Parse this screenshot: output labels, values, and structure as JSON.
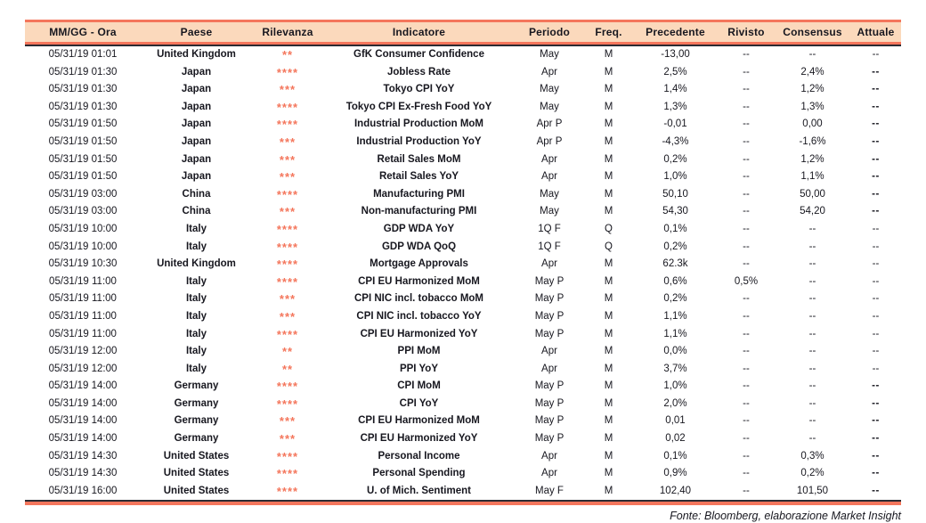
{
  "colors": {
    "accent_salmon": "#f4765c",
    "header_background": "#fbd9bc",
    "dark_rule": "#2b2b33",
    "text": "#17171f",
    "stars": "#f4765c"
  },
  "footer": {
    "source": "Fonte: Bloomberg, elaborazione Market Insight"
  },
  "table": {
    "columns": [
      "MM/GG - Ora",
      "Paese",
      "Rilevanza",
      "Indicatore",
      "Periodo",
      "Freq.",
      "Precedente",
      "Rivisto",
      "Consensus",
      "Attuale"
    ],
    "rows": [
      {
        "time": "05/31/19 01:01",
        "country": "United Kingdom",
        "stars": "**",
        "indicator": "GfK Consumer Confidence",
        "period": "May",
        "freq": "M",
        "precedente": "-13,00",
        "rivisto": "--",
        "consensus": "--",
        "attuale": "--",
        "attuale_bold": false
      },
      {
        "time": "05/31/19 01:30",
        "country": "Japan",
        "stars": "****",
        "indicator": "Jobless Rate",
        "period": "Apr",
        "freq": "M",
        "precedente": "2,5%",
        "rivisto": "--",
        "consensus": "2,4%",
        "attuale": "--",
        "attuale_bold": true
      },
      {
        "time": "05/31/19 01:30",
        "country": "Japan",
        "stars": "***",
        "indicator": "Tokyo CPI YoY",
        "period": "May",
        "freq": "M",
        "precedente": "1,4%",
        "rivisto": "--",
        "consensus": "1,2%",
        "attuale": "--",
        "attuale_bold": true
      },
      {
        "time": "05/31/19 01:30",
        "country": "Japan",
        "stars": "****",
        "indicator": "Tokyo CPI Ex-Fresh Food YoY",
        "period": "May",
        "freq": "M",
        "precedente": "1,3%",
        "rivisto": "--",
        "consensus": "1,3%",
        "attuale": "--",
        "attuale_bold": true
      },
      {
        "time": "05/31/19 01:50",
        "country": "Japan",
        "stars": "****",
        "indicator": "Industrial Production MoM",
        "period": "Apr P",
        "freq": "M",
        "precedente": "-0,01",
        "rivisto": "--",
        "consensus": "0,00",
        "attuale": "--",
        "attuale_bold": true
      },
      {
        "time": "05/31/19 01:50",
        "country": "Japan",
        "stars": "***",
        "indicator": "Industrial Production YoY",
        "period": "Apr P",
        "freq": "M",
        "precedente": "-4,3%",
        "rivisto": "--",
        "consensus": "-1,6%",
        "attuale": "--",
        "attuale_bold": true
      },
      {
        "time": "05/31/19 01:50",
        "country": "Japan",
        "stars": "***",
        "indicator": "Retail Sales MoM",
        "period": "Apr",
        "freq": "M",
        "precedente": "0,2%",
        "rivisto": "--",
        "consensus": "1,2%",
        "attuale": "--",
        "attuale_bold": true
      },
      {
        "time": "05/31/19 01:50",
        "country": "Japan",
        "stars": "***",
        "indicator": "Retail Sales YoY",
        "period": "Apr",
        "freq": "M",
        "precedente": "1,0%",
        "rivisto": "--",
        "consensus": "1,1%",
        "attuale": "--",
        "attuale_bold": true
      },
      {
        "time": "05/31/19 03:00",
        "country": "China",
        "stars": "****",
        "indicator": "Manufacturing PMI",
        "period": "May",
        "freq": "M",
        "precedente": "50,10",
        "rivisto": "--",
        "consensus": "50,00",
        "attuale": "--",
        "attuale_bold": true
      },
      {
        "time": "05/31/19 03:00",
        "country": "China",
        "stars": "***",
        "indicator": "Non-manufacturing PMI",
        "period": "May",
        "freq": "M",
        "precedente": "54,30",
        "rivisto": "--",
        "consensus": "54,20",
        "attuale": "--",
        "attuale_bold": true
      },
      {
        "time": "05/31/19 10:00",
        "country": "Italy",
        "stars": "****",
        "indicator": "GDP WDA YoY",
        "period": "1Q F",
        "freq": "Q",
        "precedente": "0,1%",
        "rivisto": "--",
        "consensus": "--",
        "attuale": "--",
        "attuale_bold": false
      },
      {
        "time": "05/31/19 10:00",
        "country": "Italy",
        "stars": "****",
        "indicator": "GDP WDA QoQ",
        "period": "1Q F",
        "freq": "Q",
        "precedente": "0,2%",
        "rivisto": "--",
        "consensus": "--",
        "attuale": "--",
        "attuale_bold": false
      },
      {
        "time": "05/31/19 10:30",
        "country": "United Kingdom",
        "stars": "****",
        "indicator": "Mortgage Approvals",
        "period": "Apr",
        "freq": "M",
        "precedente": "62.3k",
        "rivisto": "--",
        "consensus": "--",
        "attuale": "--",
        "attuale_bold": false
      },
      {
        "time": "05/31/19 11:00",
        "country": "Italy",
        "stars": "****",
        "indicator": "CPI EU Harmonized MoM",
        "period": "May P",
        "freq": "M",
        "precedente": "0,6%",
        "rivisto": "0,5%",
        "consensus": "--",
        "attuale": "--",
        "attuale_bold": false
      },
      {
        "time": "05/31/19 11:00",
        "country": "Italy",
        "stars": "***",
        "indicator": "CPI NIC incl. tobacco MoM",
        "period": "May P",
        "freq": "M",
        "precedente": "0,2%",
        "rivisto": "--",
        "consensus": "--",
        "attuale": "--",
        "attuale_bold": false
      },
      {
        "time": "05/31/19 11:00",
        "country": "Italy",
        "stars": "***",
        "indicator": "CPI NIC incl. tobacco YoY",
        "period": "May P",
        "freq": "M",
        "precedente": "1,1%",
        "rivisto": "--",
        "consensus": "--",
        "attuale": "--",
        "attuale_bold": false
      },
      {
        "time": "05/31/19 11:00",
        "country": "Italy",
        "stars": "****",
        "indicator": "CPI EU Harmonized YoY",
        "period": "May P",
        "freq": "M",
        "precedente": "1,1%",
        "rivisto": "--",
        "consensus": "--",
        "attuale": "--",
        "attuale_bold": false
      },
      {
        "time": "05/31/19 12:00",
        "country": "Italy",
        "stars": "**",
        "indicator": "PPI MoM",
        "period": "Apr",
        "freq": "M",
        "precedente": "0,0%",
        "rivisto": "--",
        "consensus": "--",
        "attuale": "--",
        "attuale_bold": false
      },
      {
        "time": "05/31/19 12:00",
        "country": "Italy",
        "stars": "**",
        "indicator": "PPI YoY",
        "period": "Apr",
        "freq": "M",
        "precedente": "3,7%",
        "rivisto": "--",
        "consensus": "--",
        "attuale": "--",
        "attuale_bold": false
      },
      {
        "time": "05/31/19 14:00",
        "country": "Germany",
        "stars": "****",
        "indicator": "CPI MoM",
        "period": "May P",
        "freq": "M",
        "precedente": "1,0%",
        "rivisto": "--",
        "consensus": "--",
        "attuale": "--",
        "attuale_bold": true
      },
      {
        "time": "05/31/19 14:00",
        "country": "Germany",
        "stars": "****",
        "indicator": "CPI YoY",
        "period": "May P",
        "freq": "M",
        "precedente": "2,0%",
        "rivisto": "--",
        "consensus": "--",
        "attuale": "--",
        "attuale_bold": true
      },
      {
        "time": "05/31/19 14:00",
        "country": "Germany",
        "stars": "***",
        "indicator": "CPI EU Harmonized MoM",
        "period": "May P",
        "freq": "M",
        "precedente": "0,01",
        "rivisto": "--",
        "consensus": "--",
        "attuale": "--",
        "attuale_bold": true
      },
      {
        "time": "05/31/19 14:00",
        "country": "Germany",
        "stars": "***",
        "indicator": "CPI EU Harmonized YoY",
        "period": "May P",
        "freq": "M",
        "precedente": "0,02",
        "rivisto": "--",
        "consensus": "--",
        "attuale": "--",
        "attuale_bold": true
      },
      {
        "time": "05/31/19 14:30",
        "country": "United States",
        "stars": "****",
        "indicator": "Personal Income",
        "period": "Apr",
        "freq": "M",
        "precedente": "0,1%",
        "rivisto": "--",
        "consensus": "0,3%",
        "attuale": "--",
        "attuale_bold": true
      },
      {
        "time": "05/31/19 14:30",
        "country": "United States",
        "stars": "****",
        "indicator": "Personal Spending",
        "period": "Apr",
        "freq": "M",
        "precedente": "0,9%",
        "rivisto": "--",
        "consensus": "0,2%",
        "attuale": "--",
        "attuale_bold": true
      },
      {
        "time": "05/31/19 16:00",
        "country": "United States",
        "stars": "****",
        "indicator": "U. of Mich. Sentiment",
        "period": "May F",
        "freq": "M",
        "precedente": "102,40",
        "rivisto": "--",
        "consensus": "101,50",
        "attuale": "--",
        "attuale_bold": true
      }
    ]
  }
}
